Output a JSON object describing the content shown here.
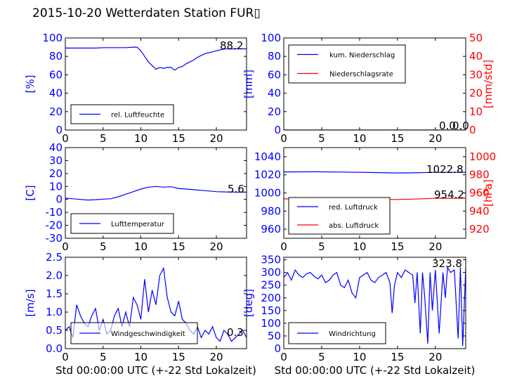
{
  "title": "2015-10-20 Wetterdaten Station FUR▯",
  "colors": {
    "blue": "#0000ff",
    "red": "#ff0000",
    "black": "#000000"
  },
  "chart_data": [
    {
      "id": "humidity",
      "type": "line",
      "ylabel": "[%]",
      "xlabel": "",
      "xlim": [
        0,
        24
      ],
      "xticks": [
        0,
        5,
        10,
        15,
        20
      ],
      "ylim": [
        0,
        100
      ],
      "yticks": [
        0,
        20,
        40,
        60,
        80,
        100
      ],
      "value_label": "88.2",
      "legend": {
        "placement": "lower-left"
      },
      "series": [
        {
          "name": "rel. Luftfeuchte",
          "color": "#0000ff",
          "x": [
            0,
            1,
            2,
            3,
            4,
            5,
            6,
            7,
            8,
            9,
            9.5,
            10,
            10.5,
            11,
            11.5,
            12,
            12.5,
            13,
            13.5,
            14,
            14.5,
            15,
            15.5,
            16,
            16.5,
            17,
            17.5,
            18,
            18.5,
            19,
            19.5,
            20,
            20.5,
            21,
            22,
            23,
            24
          ],
          "y": [
            89,
            89,
            89,
            89,
            89,
            89.5,
            89.5,
            89.5,
            89.5,
            90,
            90,
            86,
            80,
            74,
            70,
            66,
            68,
            67,
            68,
            68,
            65,
            68,
            69,
            72,
            74,
            76,
            79,
            81,
            83,
            84,
            85,
            86,
            87,
            88,
            88,
            88.2,
            88.2
          ]
        }
      ]
    },
    {
      "id": "precip",
      "type": "line",
      "ylabel": "[mm]",
      "ylabel_right": "[mm/std]",
      "xlabel": "",
      "xlim": [
        0,
        24
      ],
      "xticks": [
        0,
        5,
        10,
        15,
        20
      ],
      "ylim": [
        0,
        100
      ],
      "yticks": [
        0,
        20,
        40,
        60,
        80,
        100
      ],
      "ylim_right": [
        0,
        50
      ],
      "yticks_right": [
        0,
        10,
        20,
        30,
        40,
        50
      ],
      "value_label": "0.0",
      "value_label_right": "0.0",
      "legend": {
        "placement": "upper-left"
      },
      "series": [
        {
          "name": "kum. Niederschlag",
          "color": "#0000ff",
          "axis": "left",
          "x": [
            0,
            24
          ],
          "y": [
            0,
            0
          ]
        },
        {
          "name": "Niederschlagsrate",
          "color": "#ff0000",
          "axis": "right",
          "x": [
            0,
            24
          ],
          "y": [
            0,
            0
          ]
        }
      ]
    },
    {
      "id": "temperature",
      "type": "line",
      "ylabel": "[C]",
      "xlabel": "",
      "xlim": [
        0,
        24
      ],
      "xticks": [
        0,
        5,
        10,
        15,
        20
      ],
      "ylim": [
        -30,
        40
      ],
      "yticks": [
        -30,
        -20,
        -10,
        0,
        10,
        20,
        30,
        40
      ],
      "value_label": "5.6",
      "legend": {
        "placement": "lower-left"
      },
      "series": [
        {
          "name": "Lufttemperatur",
          "color": "#0000ff",
          "x": [
            0,
            1,
            2,
            3,
            4,
            5,
            6,
            7,
            8,
            9,
            10,
            11,
            12,
            13,
            14,
            15,
            16,
            17,
            18,
            19,
            20,
            21,
            22,
            23,
            24
          ],
          "y": [
            1,
            0.5,
            0,
            -0.5,
            -0.2,
            0.2,
            0.5,
            2,
            4,
            6,
            8,
            9.5,
            10,
            9.5,
            9.8,
            8.5,
            8,
            7.5,
            7,
            6.5,
            6,
            5.8,
            5.7,
            5.6,
            5.6
          ]
        }
      ]
    },
    {
      "id": "pressure",
      "type": "line",
      "ylabel": "",
      "ylabel_right": "[hPa]",
      "xlabel": "",
      "xlim": [
        0,
        24
      ],
      "xticks": [
        0,
        5,
        10,
        15,
        20
      ],
      "ylim": [
        950,
        1050
      ],
      "yticks": [
        960,
        980,
        1000,
        1020,
        1040
      ],
      "ylim_right": [
        910,
        1010
      ],
      "yticks_right": [
        920,
        940,
        960,
        980,
        1000
      ],
      "value_label": "1022.8",
      "value_label_right": "954.2",
      "legend": {
        "placement": "lower-left"
      },
      "series": [
        {
          "name": "red. Luftdruck",
          "color": "#0000ff",
          "axis": "left",
          "x": [
            0,
            4,
            8,
            12,
            15,
            17,
            20,
            24
          ],
          "y": [
            1023.2,
            1023.3,
            1023.0,
            1022.5,
            1022.0,
            1022.2,
            1022.7,
            1022.8
          ]
        },
        {
          "name": "abs. Luftdruck",
          "color": "#ff0000",
          "axis": "right",
          "x": [
            0,
            4,
            8,
            12,
            15,
            17,
            20,
            24
          ],
          "y": [
            953.5,
            953.6,
            953.4,
            953.0,
            952.8,
            953.2,
            954.0,
            954.2
          ]
        }
      ]
    },
    {
      "id": "wind",
      "type": "line",
      "ylabel": "[m/s]",
      "xlabel": "Std 00:00:00 UTC (+-22 Std Lokalzeit)",
      "xlim": [
        0,
        24
      ],
      "xticks": [
        0,
        5,
        10,
        15,
        20
      ],
      "ylim": [
        0,
        2.5
      ],
      "yticks": [
        0.0,
        0.5,
        1.0,
        1.5,
        2.0,
        2.5
      ],
      "value_label": "0.3",
      "legend": {
        "placement": "lower-center"
      },
      "series": [
        {
          "name": "Windgeschwindigkeit",
          "color": "#0000ff",
          "x": [
            0,
            0.5,
            1,
            1.5,
            2,
            2.5,
            3,
            3.5,
            4,
            4.5,
            5,
            5.5,
            6,
            6.5,
            7,
            7.5,
            8,
            8.5,
            9,
            9.5,
            10,
            10.5,
            11,
            11.5,
            12,
            12.5,
            13,
            13.5,
            14,
            14.5,
            15,
            15.5,
            16,
            16.5,
            17,
            17.5,
            18,
            18.5,
            19,
            19.5,
            20,
            20.5,
            21,
            21.5,
            22,
            22.5,
            23,
            23.5,
            24
          ],
          "y": [
            0.5,
            0.6,
            0.3,
            1.2,
            0.9,
            0.7,
            0.6,
            0.9,
            1.1,
            0.5,
            0.8,
            0.4,
            0.5,
            0.9,
            1.1,
            0.6,
            1.0,
            0.6,
            1.4,
            1.2,
            0.8,
            1.9,
            1.0,
            1.6,
            1.2,
            2.0,
            2.2,
            1.4,
            1.0,
            0.9,
            1.3,
            0.8,
            0.7,
            0.5,
            0.4,
            0.6,
            0.3,
            0.5,
            0.4,
            0.6,
            0.3,
            0.2,
            0.5,
            0.4,
            0.2,
            0.3,
            0.4,
            0.5,
            0.3
          ]
        }
      ]
    },
    {
      "id": "winddir",
      "type": "line",
      "ylabel": "[deg]",
      "xlabel": "Std 00:00:00 UTC (+-22 Std Lokalzeit)",
      "xlim": [
        0,
        24
      ],
      "xticks": [
        0,
        5,
        10,
        15,
        20
      ],
      "ylim": [
        0,
        360
      ],
      "yticks": [
        0,
        50,
        100,
        150,
        200,
        250,
        300,
        350
      ],
      "value_label": "323.8",
      "legend": {
        "placement": "lower-left"
      },
      "series": [
        {
          "name": "Windrichtung",
          "color": "#0000ff",
          "x": [
            0,
            0.5,
            1,
            1.5,
            2,
            2.5,
            3,
            3.5,
            4,
            4.5,
            5,
            5.5,
            6,
            6.5,
            7,
            7.5,
            8,
            8.5,
            9,
            9.5,
            10,
            10.5,
            11,
            11.5,
            12,
            12.5,
            13,
            13.5,
            14,
            14.3,
            14.6,
            15,
            15.5,
            16,
            16.5,
            17,
            17.3,
            17.6,
            18,
            18.3,
            18.6,
            19,
            19.3,
            19.6,
            20,
            20.5,
            21,
            21.3,
            21.6,
            22,
            22.5,
            23,
            23.3,
            23.6,
            24
          ],
          "y": [
            280,
            300,
            270,
            310,
            290,
            280,
            295,
            300,
            285,
            275,
            290,
            260,
            270,
            290,
            300,
            250,
            240,
            270,
            220,
            200,
            280,
            290,
            300,
            270,
            260,
            280,
            290,
            300,
            260,
            140,
            250,
            300,
            280,
            310,
            300,
            290,
            180,
            300,
            60,
            300,
            200,
            20,
            300,
            150,
            310,
            60,
            300,
            200,
            320,
            300,
            310,
            40,
            320,
            10,
            320
          ]
        }
      ]
    }
  ]
}
